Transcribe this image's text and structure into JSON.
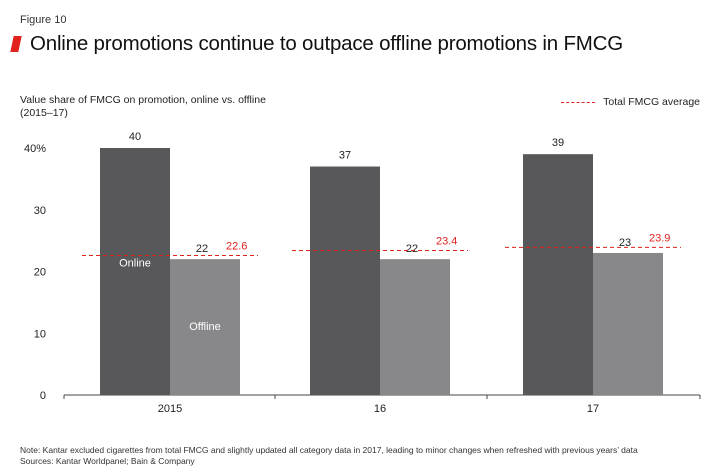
{
  "figure": {
    "label": "Figure 10",
    "title": "Online promotions continue to outpace offline promotions in FMCG",
    "subtitle_line1": "Value share of FMCG on promotion, online vs. offline",
    "subtitle_line2": "(2015–17)",
    "legend_label": "Total FMCG average",
    "note": "Note: Kantar excluded cigarettes from total FMCG and slightly updated all category data in 2017, leading to minor changes when refreshed with previous years’ data",
    "sources": "Sources: Kantar Worldpanel; Bain & Company"
  },
  "colors": {
    "online": "#58585a",
    "offline": "#88888a",
    "average": "#e0231c",
    "accent": "#e0231c"
  },
  "chart_data": {
    "type": "bar",
    "categories": [
      "2015",
      "16",
      "17"
    ],
    "series": [
      {
        "name": "Online",
        "values": [
          40,
          37,
          39
        ]
      },
      {
        "name": "Offline",
        "values": [
          22,
          22,
          23
        ]
      }
    ],
    "average": {
      "name": "Total FMCG average",
      "values": [
        22.6,
        23.4,
        23.9
      ]
    },
    "yticks": [
      "0",
      "10",
      "20",
      "30",
      "40%"
    ],
    "ytick_values": [
      0,
      10,
      20,
      30,
      40
    ],
    "ylim": [
      0,
      40
    ],
    "title": "Online promotions continue to outpace offline promotions in FMCG",
    "ylabel": "Value share of FMCG on promotion, online vs. offline",
    "xlabel": "",
    "legend": "top-right",
    "grid": false
  }
}
